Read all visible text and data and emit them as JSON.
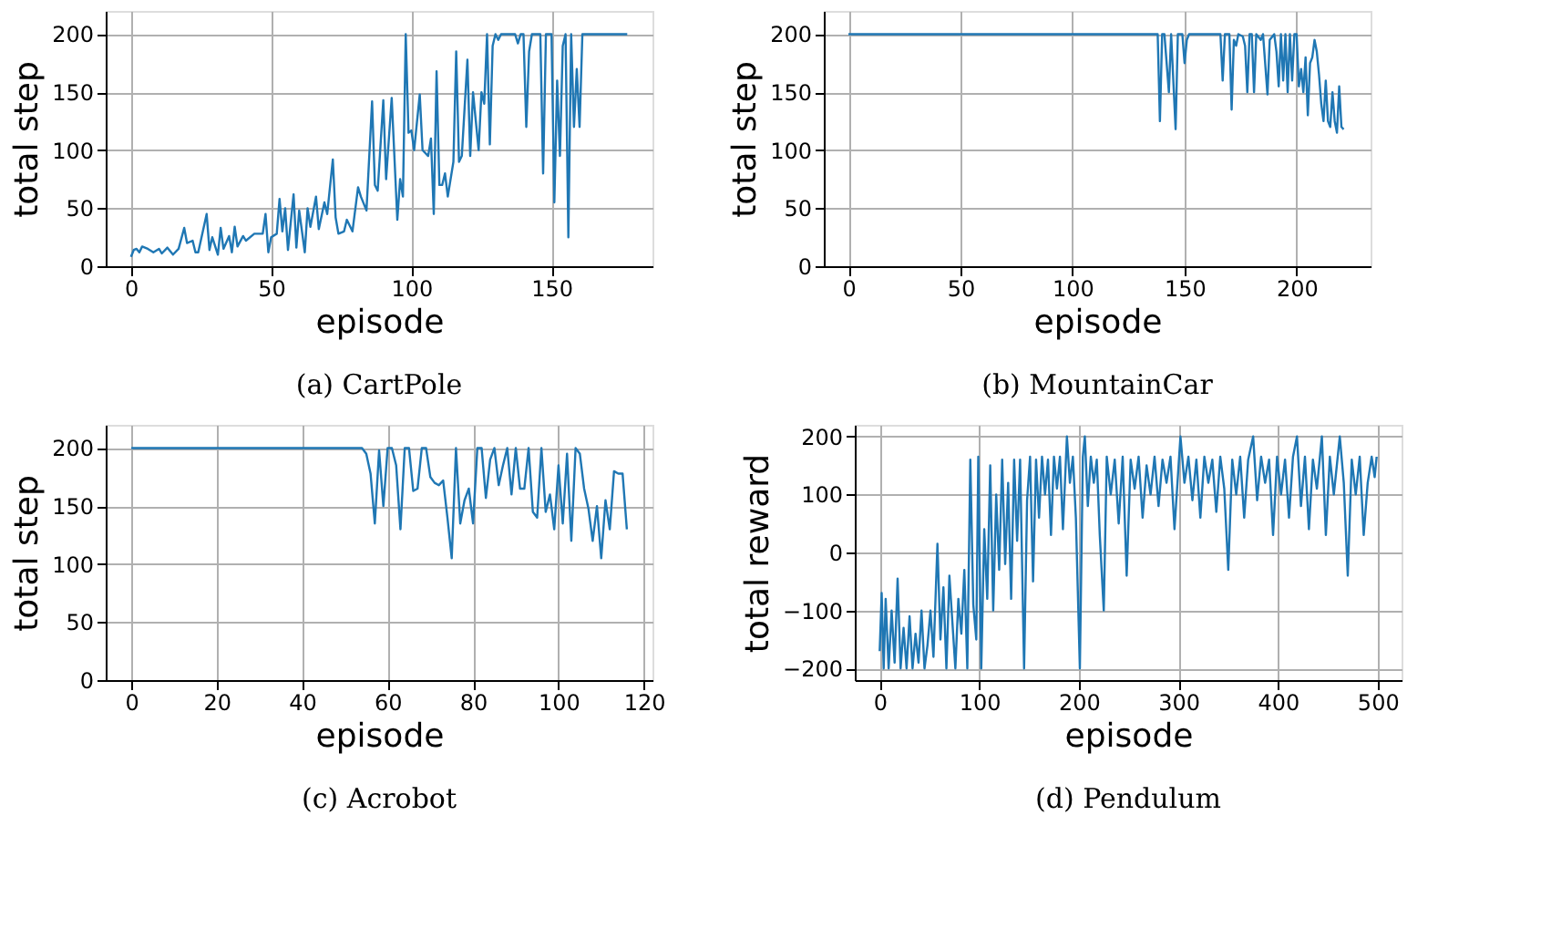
{
  "chart_data": [
    {
      "type": "line",
      "title": "(a) CartPole",
      "xlabel": "episode",
      "ylabel": "total step",
      "xlim": [
        -9,
        186
      ],
      "xticks": [
        0,
        50,
        100,
        150
      ],
      "ylim": [
        0,
        220
      ],
      "yticks": [
        0,
        50,
        100,
        150,
        200
      ],
      "grid": true,
      "series": [
        {
          "color": "#1f77b4",
          "x": [
            0,
            1,
            2,
            3,
            4,
            6,
            8,
            10,
            11,
            13,
            15,
            17,
            19,
            20,
            22,
            23,
            24,
            27,
            28,
            29,
            31,
            32,
            33,
            35,
            36,
            37,
            38,
            40,
            41,
            44,
            47,
            48,
            49,
            50,
            52,
            53,
            54,
            55,
            56,
            58,
            59,
            60,
            62,
            63,
            64,
            66,
            67,
            69,
            70,
            72,
            73,
            74,
            76,
            77,
            79,
            81,
            82,
            84,
            86,
            87,
            88,
            90,
            91,
            92,
            93,
            95,
            96,
            97,
            98,
            99,
            100,
            101,
            103,
            104,
            106,
            107,
            108,
            109,
            110,
            111,
            112,
            113,
            115,
            116,
            117,
            118,
            120,
            121,
            122,
            124,
            125,
            126,
            127,
            128,
            129,
            130,
            131,
            132,
            133,
            137,
            138,
            139,
            140,
            141,
            142,
            143,
            144,
            146,
            147,
            148,
            149,
            150,
            151,
            152,
            153,
            154,
            155,
            156,
            157,
            158,
            159,
            160,
            161,
            162,
            177
          ],
          "values": [
            8,
            14,
            15,
            12,
            17,
            15,
            12,
            15,
            11,
            16,
            10,
            15,
            33,
            20,
            22,
            12,
            12,
            45,
            14,
            25,
            10,
            33,
            15,
            26,
            12,
            34,
            17,
            26,
            22,
            28,
            28,
            45,
            12,
            25,
            28,
            58,
            30,
            50,
            14,
            62,
            16,
            48,
            12,
            50,
            34,
            60,
            32,
            55,
            45,
            92,
            42,
            28,
            30,
            40,
            30,
            68,
            60,
            48,
            142,
            70,
            65,
            143,
            75,
            110,
            145,
            40,
            75,
            60,
            200,
            115,
            117,
            100,
            148,
            100,
            95,
            110,
            45,
            168,
            70,
            70,
            80,
            60,
            90,
            185,
            90,
            95,
            178,
            95,
            150,
            100,
            150,
            140,
            200,
            105,
            190,
            200,
            195,
            200,
            200,
            200,
            192,
            200,
            200,
            120,
            185,
            200,
            200,
            200,
            80,
            200,
            200,
            200,
            55,
            160,
            95,
            190,
            200,
            25,
            200,
            120,
            170,
            120,
            200,
            200,
            200
          ]
        }
      ]
    },
    {
      "type": "line",
      "title": "(b) MountainCar",
      "xlabel": "episode",
      "ylabel": "total step",
      "xlim": [
        -11,
        233
      ],
      "xticks": [
        0,
        50,
        100,
        150,
        200
      ],
      "ylim": [
        0,
        220
      ],
      "yticks": [
        0,
        50,
        100,
        150,
        200
      ],
      "grid": true,
      "series": [
        {
          "color": "#1f77b4",
          "x": [
            0,
            138,
            139,
            140,
            141,
            143,
            144,
            146,
            147,
            149,
            150,
            151,
            152,
            166,
            167,
            168,
            170,
            171,
            172,
            173,
            174,
            176,
            177,
            178,
            179,
            180,
            181,
            182,
            184,
            185,
            187,
            188,
            190,
            191,
            192,
            193,
            194,
            195,
            196,
            197,
            198,
            199,
            200,
            201,
            202,
            203,
            204,
            205,
            206,
            207,
            208,
            209,
            210,
            211,
            212,
            213,
            214,
            215,
            216,
            217,
            218,
            219,
            220,
            221
          ],
          "values": [
            200,
            200,
            125,
            200,
            200,
            150,
            200,
            118,
            200,
            200,
            175,
            195,
            200,
            200,
            160,
            200,
            200,
            135,
            195,
            190,
            200,
            198,
            190,
            150,
            200,
            200,
            150,
            200,
            195,
            200,
            148,
            195,
            200,
            185,
            155,
            200,
            160,
            200,
            150,
            200,
            160,
            200,
            200,
            155,
            170,
            150,
            180,
            130,
            175,
            180,
            195,
            185,
            165,
            140,
            125,
            160,
            125,
            120,
            150,
            125,
            115,
            155,
            120,
            118
          ]
        }
      ]
    },
    {
      "type": "line",
      "title": "(c) Acrobot",
      "xlabel": "episode",
      "ylabel": "total step",
      "xlim": [
        -6,
        122
      ],
      "xticks": [
        0,
        20,
        40,
        60,
        80,
        100,
        120
      ],
      "ylim": [
        0,
        220
      ],
      "yticks": [
        0,
        50,
        100,
        150,
        200
      ],
      "grid": true,
      "series": [
        {
          "color": "#1f77b4",
          "x": [
            0,
            54,
            55,
            56,
            57,
            58,
            59,
            60,
            61,
            62,
            63,
            64,
            65,
            66,
            67,
            68,
            69,
            70,
            71,
            72,
            73,
            74,
            75,
            76,
            77,
            78,
            79,
            80,
            81,
            82,
            83,
            84,
            85,
            86,
            87,
            88,
            89,
            90,
            91,
            92,
            93,
            94,
            95,
            96,
            97,
            98,
            99,
            100,
            101,
            102,
            103,
            104,
            105,
            106,
            107,
            108,
            109,
            110,
            111,
            112,
            113,
            114,
            115,
            116
          ],
          "values": [
            200,
            200,
            195,
            178,
            135,
            198,
            150,
            200,
            200,
            185,
            130,
            200,
            200,
            163,
            165,
            200,
            200,
            175,
            170,
            168,
            172,
            140,
            105,
            200,
            135,
            155,
            165,
            135,
            200,
            200,
            157,
            190,
            200,
            168,
            185,
            200,
            160,
            200,
            165,
            165,
            200,
            145,
            140,
            200,
            145,
            160,
            130,
            185,
            135,
            195,
            120,
            200,
            195,
            165,
            148,
            120,
            150,
            105,
            155,
            130,
            180,
            178,
            178,
            130
          ]
        }
      ]
    },
    {
      "type": "line",
      "title": "(d) Pendulum",
      "xlabel": "episode",
      "ylabel": "total reward",
      "xlim": [
        -25,
        524
      ],
      "xticks": [
        0,
        100,
        200,
        300,
        400,
        500
      ],
      "ylim": [
        -220,
        220
      ],
      "yticks": [
        -200,
        -100,
        0,
        100,
        200
      ],
      "grid": true,
      "series": [
        {
          "color": "#1f77b4",
          "x": [
            0,
            2,
            4,
            6,
            9,
            12,
            15,
            18,
            21,
            24,
            27,
            30,
            33,
            36,
            39,
            42,
            45,
            48,
            51,
            54,
            58,
            61,
            64,
            67,
            70,
            73,
            76,
            79,
            82,
            85,
            88,
            91,
            94,
            97,
            99,
            102,
            105,
            108,
            111,
            114,
            117,
            120,
            123,
            126,
            129,
            132,
            135,
            138,
            141,
            145,
            148,
            151,
            154,
            157,
            160,
            163,
            166,
            169,
            172,
            175,
            178,
            181,
            184,
            188,
            191,
            194,
            197,
            201,
            204,
            206,
            209,
            212,
            215,
            218,
            221,
            225,
            228,
            232,
            236,
            240,
            244,
            248,
            252,
            256,
            260,
            264,
            268,
            272,
            276,
            280,
            284,
            288,
            292,
            296,
            302,
            306,
            310,
            314,
            318,
            322,
            326,
            330,
            334,
            338,
            342,
            346,
            350,
            354,
            358,
            362,
            366,
            370,
            375,
            379,
            383,
            387,
            391,
            395,
            399,
            403,
            407,
            411,
            415,
            419,
            423,
            427,
            431,
            435,
            439,
            444,
            448,
            452,
            456,
            462,
            466,
            470,
            474,
            478,
            482,
            486,
            490,
            494,
            497,
            499
          ],
          "values": [
            -170,
            -70,
            -200,
            -80,
            -200,
            -100,
            -190,
            -45,
            -200,
            -130,
            -200,
            -110,
            -200,
            -140,
            -190,
            -100,
            -200,
            -160,
            -100,
            -180,
            15,
            -150,
            -60,
            -200,
            -40,
            -120,
            -200,
            -80,
            -140,
            -30,
            -200,
            160,
            -90,
            -150,
            165,
            -200,
            40,
            -80,
            150,
            -100,
            100,
            -30,
            160,
            -20,
            120,
            -80,
            160,
            20,
            160,
            -200,
            90,
            165,
            -50,
            160,
            60,
            165,
            100,
            160,
            30,
            165,
            110,
            165,
            40,
            200,
            120,
            165,
            60,
            -200,
            165,
            200,
            80,
            165,
            120,
            160,
            30,
            -100,
            165,
            100,
            160,
            50,
            165,
            -40,
            160,
            110,
            165,
            60,
            150,
            100,
            165,
            80,
            160,
            120,
            165,
            40,
            200,
            120,
            165,
            90,
            160,
            60,
            165,
            120,
            160,
            70,
            165,
            110,
            -30,
            160,
            100,
            165,
            60,
            160,
            200,
            90,
            165,
            120,
            160,
            30,
            165,
            100,
            160,
            60,
            165,
            200,
            80,
            165,
            40,
            160,
            110,
            200,
            30,
            165,
            100,
            200,
            120,
            -40,
            160,
            100,
            165,
            30,
            120,
            165,
            130,
            165
          ]
        }
      ]
    }
  ]
}
